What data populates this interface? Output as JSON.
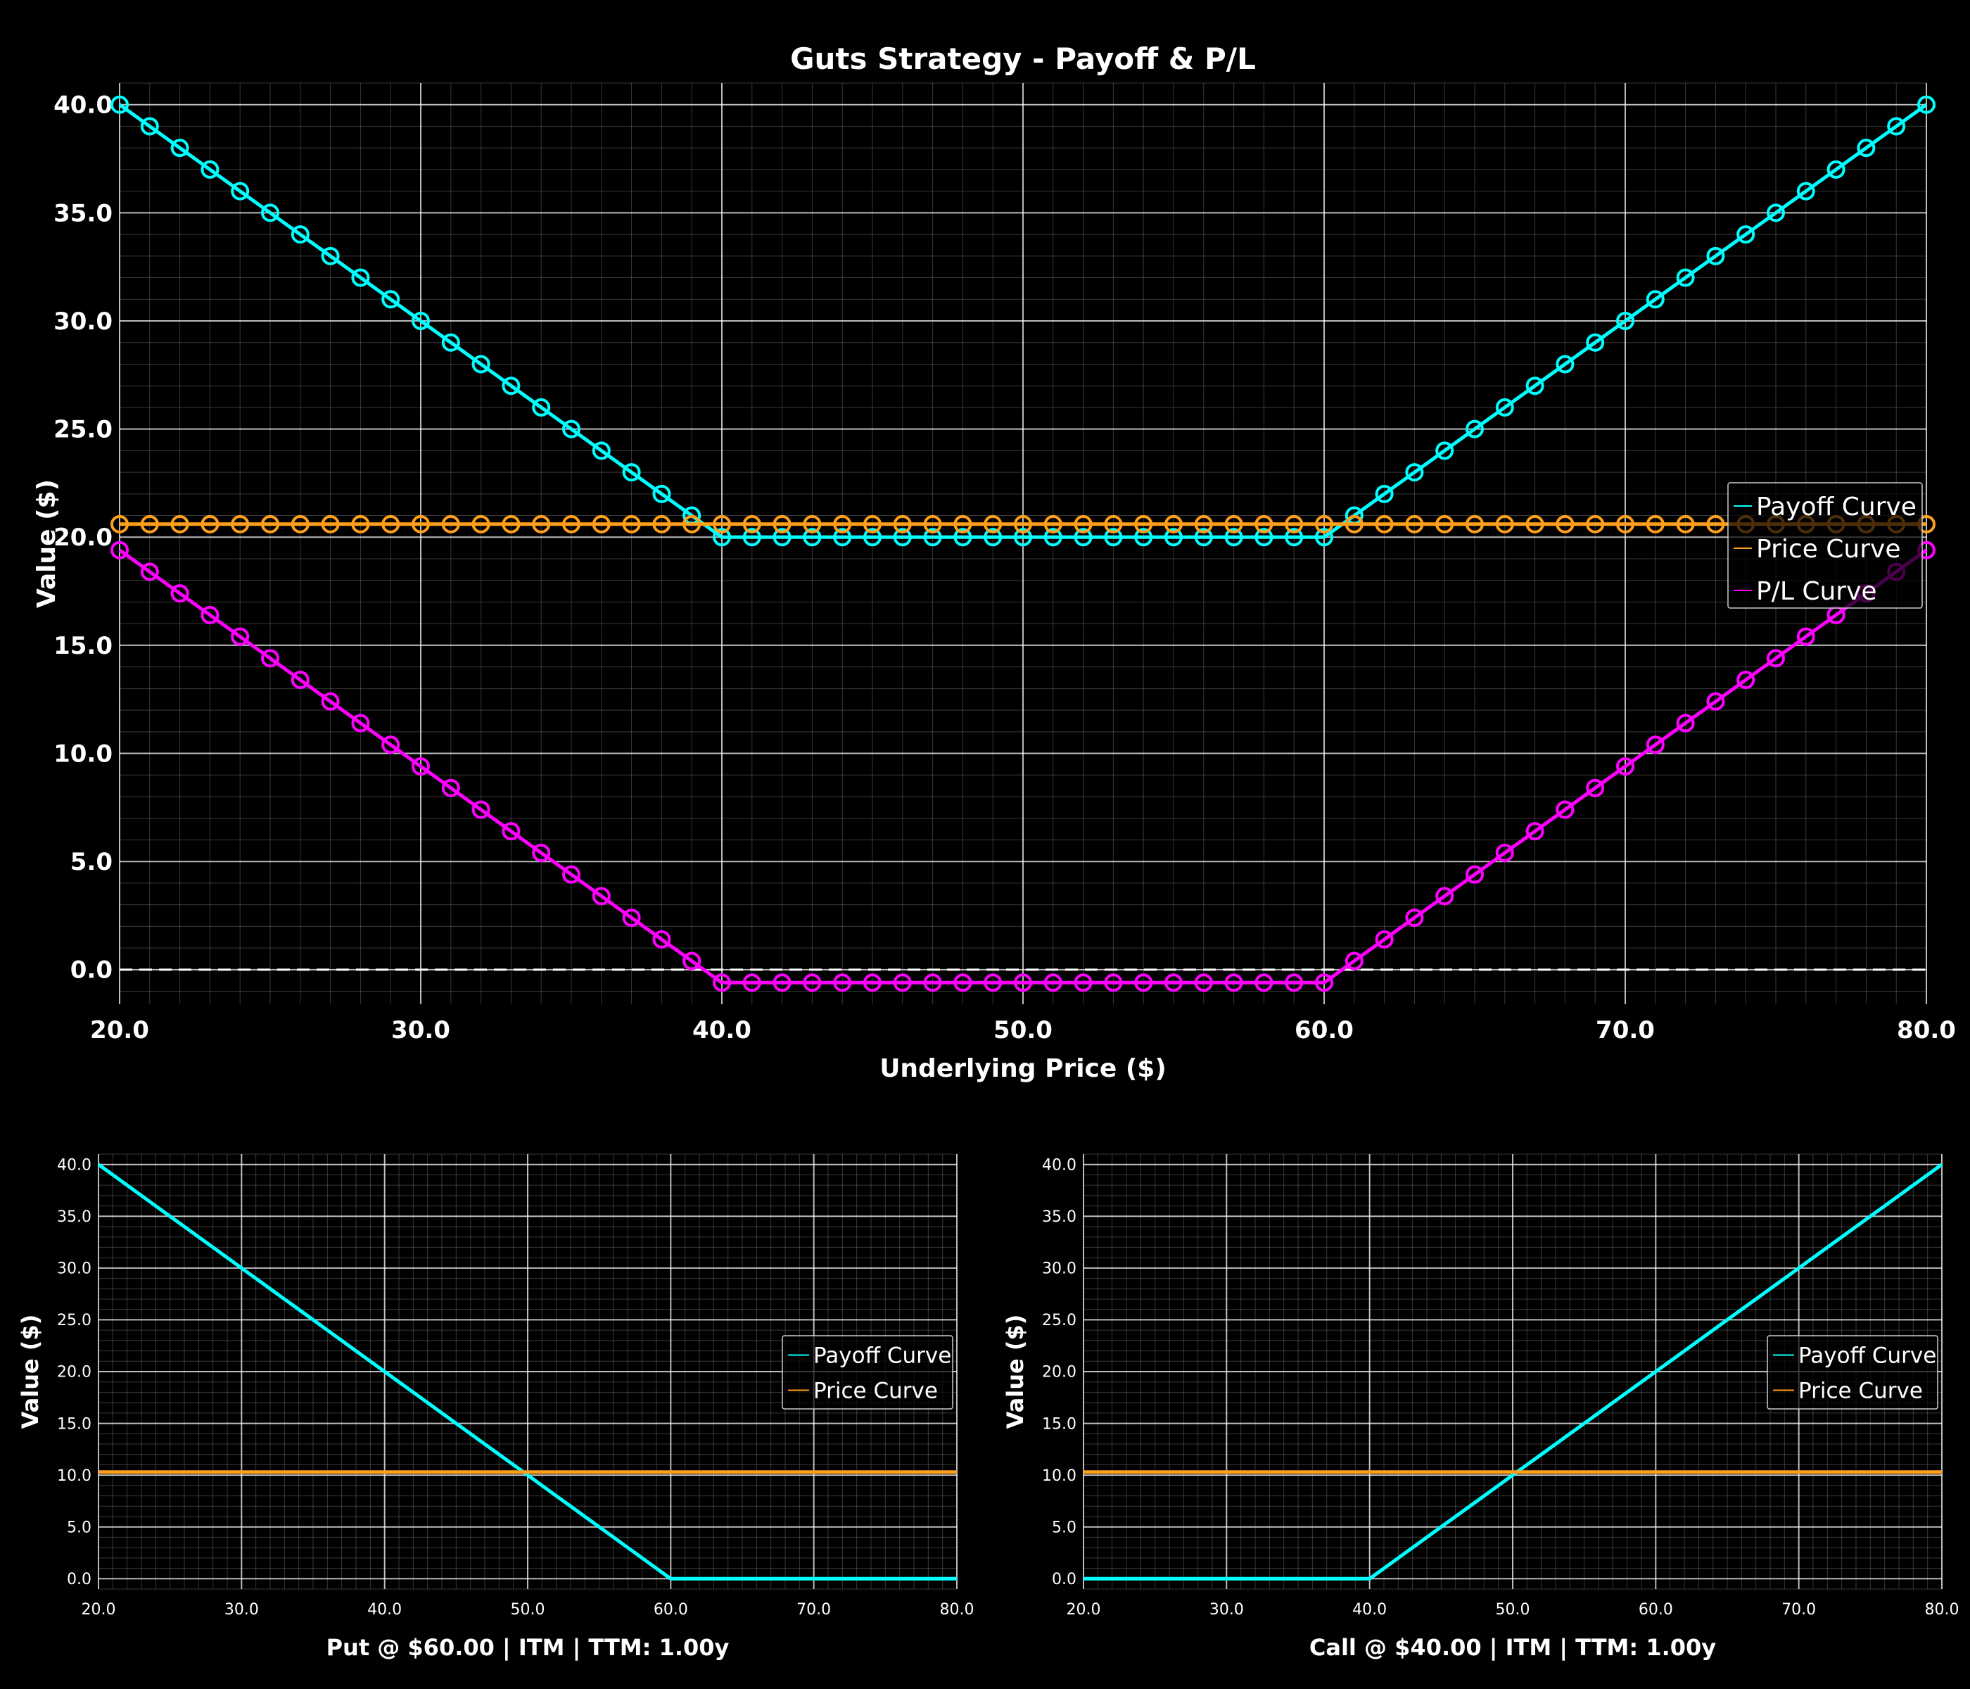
{
  "colors": {
    "background": "#000000",
    "payoff": "#00ffff",
    "price": "#ff9f1c",
    "pl": "#ff00ff",
    "grid": "#ffffff",
    "text": "#ffffff"
  },
  "chart_data": [
    {
      "id": "main",
      "type": "line",
      "title": "Guts Strategy - Payoff & P/L",
      "xlabel": "Underlying Price ($)",
      "ylabel": "Value ($)",
      "xlim": [
        20,
        80
      ],
      "ylim": [
        -1.6,
        41
      ],
      "xticks": [
        "20.0",
        "30.0",
        "40.0",
        "50.0",
        "60.0",
        "70.0",
        "80.0"
      ],
      "yticks": [
        "0.0",
        "5.0",
        "10.0",
        "15.0",
        "20.0",
        "25.0",
        "30.0",
        "35.0",
        "40.0"
      ],
      "grid": true,
      "zero_line": true,
      "markers": true,
      "legend_position": "center-right",
      "series": [
        {
          "name": "Payoff Curve",
          "color_key": "payoff",
          "kind": "guts_payoff",
          "put_strike": 60,
          "call_strike": 40
        },
        {
          "name": "Price Curve",
          "color_key": "price",
          "kind": "constant",
          "value": 20.6
        },
        {
          "name": "P/L Curve",
          "color_key": "pl",
          "kind": "guts_pl",
          "put_strike": 60,
          "call_strike": 40,
          "cost": 20.6
        }
      ]
    },
    {
      "id": "put",
      "type": "line",
      "title": "",
      "xlabel": "Put @ $60.00 | ITM | TTM: 1.00y",
      "ylabel": "Value ($)",
      "xlim": [
        20,
        80
      ],
      "ylim": [
        -1,
        41
      ],
      "xticks": [
        "20.0",
        "30.0",
        "40.0",
        "50.0",
        "60.0",
        "70.0",
        "80.0"
      ],
      "yticks": [
        "0.0",
        "5.0",
        "10.0",
        "15.0",
        "20.0",
        "25.0",
        "30.0",
        "35.0",
        "40.0"
      ],
      "grid": true,
      "markers": false,
      "legend_position": "center-right",
      "series": [
        {
          "name": "Payoff Curve",
          "color_key": "payoff",
          "kind": "put_payoff",
          "strike": 60
        },
        {
          "name": "Price Curve",
          "color_key": "price",
          "kind": "constant",
          "value": 10.3
        }
      ]
    },
    {
      "id": "call",
      "type": "line",
      "title": "",
      "xlabel": "Call @ $40.00 | ITM | TTM: 1.00y",
      "ylabel": "Value ($)",
      "xlim": [
        20,
        80
      ],
      "ylim": [
        -1,
        41
      ],
      "xticks": [
        "20.0",
        "30.0",
        "40.0",
        "50.0",
        "60.0",
        "70.0",
        "80.0"
      ],
      "yticks": [
        "0.0",
        "5.0",
        "10.0",
        "15.0",
        "20.0",
        "25.0",
        "30.0",
        "35.0",
        "40.0"
      ],
      "grid": true,
      "markers": false,
      "legend_position": "center-right",
      "series": [
        {
          "name": "Payoff Curve",
          "color_key": "payoff",
          "kind": "call_payoff",
          "strike": 40
        },
        {
          "name": "Price Curve",
          "color_key": "price",
          "kind": "constant",
          "value": 10.3
        }
      ]
    }
  ]
}
